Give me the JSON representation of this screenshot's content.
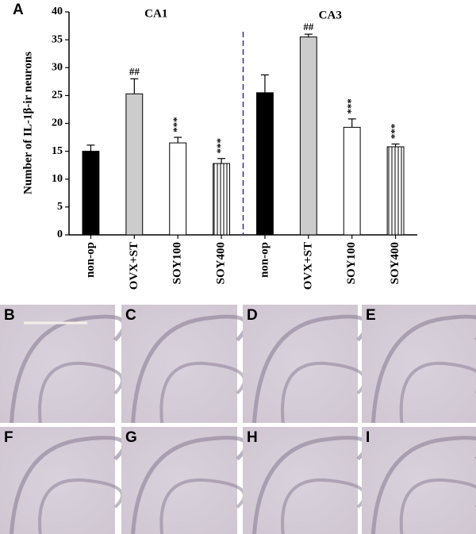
{
  "chart_data": {
    "type": "bar",
    "panel_label": "A",
    "ylabel": "Number of IL-1β-ir neurons",
    "groups": [
      {
        "label": "CA1",
        "start": 0,
        "end": 3
      },
      {
        "label": "CA3",
        "start": 4,
        "end": 7
      }
    ],
    "categories": [
      "non-op",
      "OVX+ST",
      "SOY100",
      "SOY400",
      "non-op",
      "OVX+ST",
      "SOY100",
      "SOY400"
    ],
    "values": [
      15,
      25.3,
      16.5,
      12.8,
      25.5,
      35.5,
      19.3,
      15.8
    ],
    "errors": [
      1.1,
      2.7,
      1.0,
      0.9,
      3.2,
      0.5,
      1.5,
      0.5
    ],
    "annotations": [
      null,
      "##",
      "***",
      "***",
      null,
      "##",
      "***",
      "***"
    ],
    "colors": [
      "#000000",
      "#cccccc",
      "#ffffff",
      "#ffffff",
      "#000000",
      "#cccccc",
      "#ffffff",
      "#ffffff"
    ],
    "hatch": [
      false,
      false,
      false,
      true,
      false,
      false,
      false,
      true
    ],
    "ylim": [
      0,
      40
    ],
    "yticks": [
      0,
      5,
      10,
      15,
      20,
      25,
      30,
      35,
      40
    ]
  },
  "micrographs": {
    "labels": [
      "B",
      "C",
      "D",
      "E",
      "F",
      "G",
      "H",
      "I"
    ]
  }
}
